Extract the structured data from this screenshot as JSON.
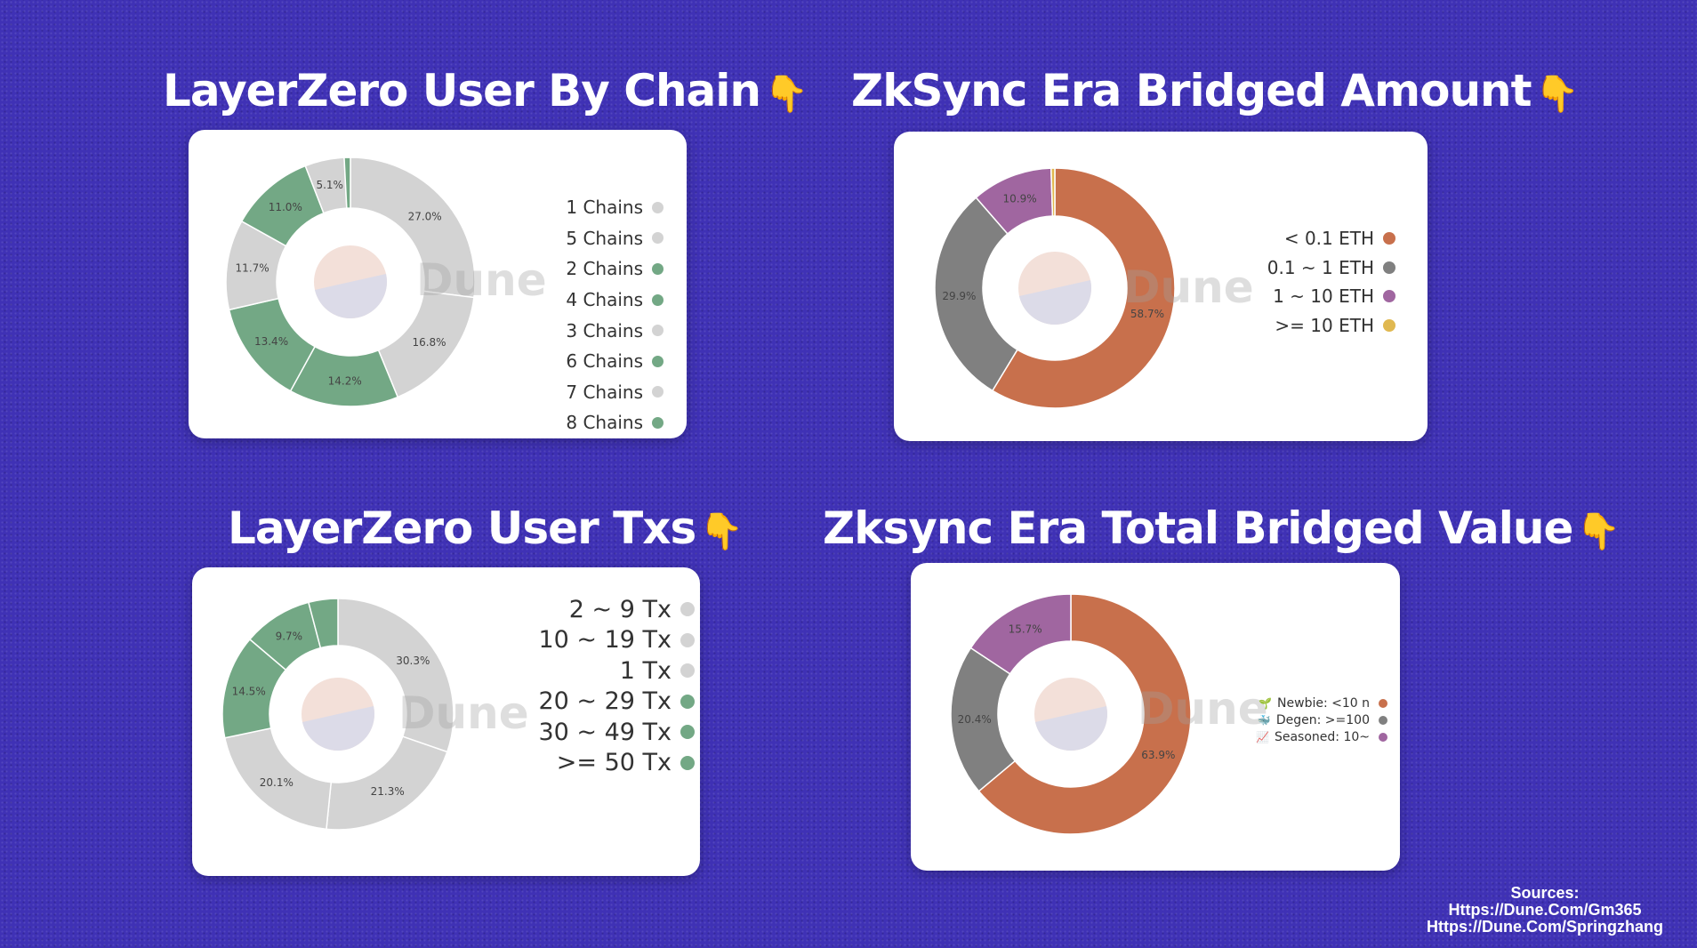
{
  "titles": {
    "lz_chain": "LayerZero User By Chain",
    "zk_amount": "ZkSync Era Bridged Amount",
    "lz_txs": "LayerZero User Txs",
    "zk_value": "Zksync Era Total Bridged Value",
    "hand_icon": "👇"
  },
  "watermark": "Dune",
  "sources": {
    "label": "Sources:",
    "link1": "Https://Dune.Com/Gm365",
    "link2": "Https://Dune.Com/Springzhang"
  },
  "chart_data": [
    {
      "type": "pie",
      "title": "LayerZero User By Chain",
      "categories": [
        "1 Chains",
        "5 Chains",
        "2 Chains",
        "4 Chains",
        "3 Chains",
        "6 Chains",
        "7 Chains",
        "8 Chains"
      ],
      "slices": [
        {
          "label": "1 Chains",
          "value": 27.0,
          "display": "27.0%",
          "color": "#d3d3d3"
        },
        {
          "label": "5 Chains",
          "value": 16.8,
          "display": "16.8%",
          "color": "#d3d3d3"
        },
        {
          "label": "2 Chains",
          "value": 14.2,
          "display": "14.2%",
          "color": "#73a885"
        },
        {
          "label": "4 Chains",
          "value": 13.4,
          "display": "13.4%",
          "color": "#73a885"
        },
        {
          "label": "3 Chains",
          "value": 11.7,
          "display": "11.7%",
          "color": "#d3d3d3"
        },
        {
          "label": "6 Chains",
          "value": 11.0,
          "display": "11.0%",
          "color": "#73a885"
        },
        {
          "label": "7 Chains",
          "value": 5.1,
          "display": "5.1%",
          "color": "#d3d3d3"
        },
        {
          "label": "8 Chains",
          "value": 0.8,
          "display": "",
          "color": "#73a885"
        }
      ],
      "legend": [
        {
          "label": "1 Chains",
          "color": "#d3d3d3"
        },
        {
          "label": "5 Chains",
          "color": "#d3d3d3"
        },
        {
          "label": "2 Chains",
          "color": "#73a885"
        },
        {
          "label": "4 Chains",
          "color": "#73a885"
        },
        {
          "label": "3 Chains",
          "color": "#d3d3d3"
        },
        {
          "label": "6 Chains",
          "color": "#73a885"
        },
        {
          "label": "7 Chains",
          "color": "#d3d3d3"
        },
        {
          "label": "8 Chains",
          "color": "#73a885"
        }
      ],
      "legend_position": "right"
    },
    {
      "type": "pie",
      "title": "ZkSync Era Bridged Amount",
      "slices": [
        {
          "label": "< 0.1 ETH",
          "value": 58.7,
          "display": "58.7%",
          "color": "#c8704c"
        },
        {
          "label": "0.1 ~ 1 ETH",
          "value": 29.9,
          "display": "29.9%",
          "color": "#808080"
        },
        {
          "label": "1 ~ 10 ETH",
          "value": 10.9,
          "display": "10.9%",
          "color": "#a066a0"
        },
        {
          "label": ">= 10 ETH",
          "value": 0.5,
          "display": "",
          "color": "#e0b850"
        }
      ],
      "legend": [
        {
          "label": "< 0.1 ETH",
          "color": "#c8704c"
        },
        {
          "label": "0.1 ~ 1 ETH",
          "color": "#808080"
        },
        {
          "label": "1 ~ 10 ETH",
          "color": "#a066a0"
        },
        {
          "label": ">= 10 ETH",
          "color": "#e0b850"
        }
      ],
      "legend_position": "right"
    },
    {
      "type": "pie",
      "title": "LayerZero User Txs",
      "slices": [
        {
          "label": "2 ~ 9 Tx",
          "value": 30.3,
          "display": "30.3%",
          "color": "#d3d3d3"
        },
        {
          "label": "10 ~ 19 Tx",
          "value": 21.3,
          "display": "21.3%",
          "color": "#d3d3d3"
        },
        {
          "label": "1 Tx",
          "value": 20.1,
          "display": "20.1%",
          "color": "#d3d3d3"
        },
        {
          "label": "20 ~ 29 Tx",
          "value": 14.5,
          "display": "14.5%",
          "color": "#73a885"
        },
        {
          "label": "30 ~ 49 Tx",
          "value": 9.7,
          "display": "9.7%",
          "color": "#73a885"
        },
        {
          "label": ">= 50 Tx",
          "value": 4.1,
          "display": "",
          "color": "#73a885"
        }
      ],
      "legend": [
        {
          "label": "2 ~ 9 Tx",
          "color": "#d3d3d3"
        },
        {
          "label": "10 ~ 19 Tx",
          "color": "#d3d3d3"
        },
        {
          "label": "1 Tx",
          "color": "#d3d3d3"
        },
        {
          "label": "20 ~ 29 Tx",
          "color": "#73a885"
        },
        {
          "label": "30 ~ 49 Tx",
          "color": "#73a885"
        },
        {
          "label": ">= 50 Tx",
          "color": "#73a885"
        }
      ],
      "legend_position": "right"
    },
    {
      "type": "pie",
      "title": "Zksync Era Total Bridged Value",
      "slices": [
        {
          "label": "Newbie: <10 n",
          "value": 63.9,
          "display": "63.9%",
          "color": "#c8704c"
        },
        {
          "label": "Degen: >=100",
          "value": 20.4,
          "display": "20.4%",
          "color": "#808080"
        },
        {
          "label": "Seasoned: 10~",
          "value": 15.7,
          "display": "15.7%",
          "color": "#a066a0"
        }
      ],
      "legend": [
        {
          "label": "Newbie: <10 n",
          "color": "#c8704c",
          "icon": "🌱"
        },
        {
          "label": "Degen: >=100",
          "color": "#808080",
          "icon": "🐳"
        },
        {
          "label": "Seasoned: 10~",
          "color": "#a066a0",
          "icon": "📈"
        }
      ],
      "legend_position": "right"
    }
  ]
}
